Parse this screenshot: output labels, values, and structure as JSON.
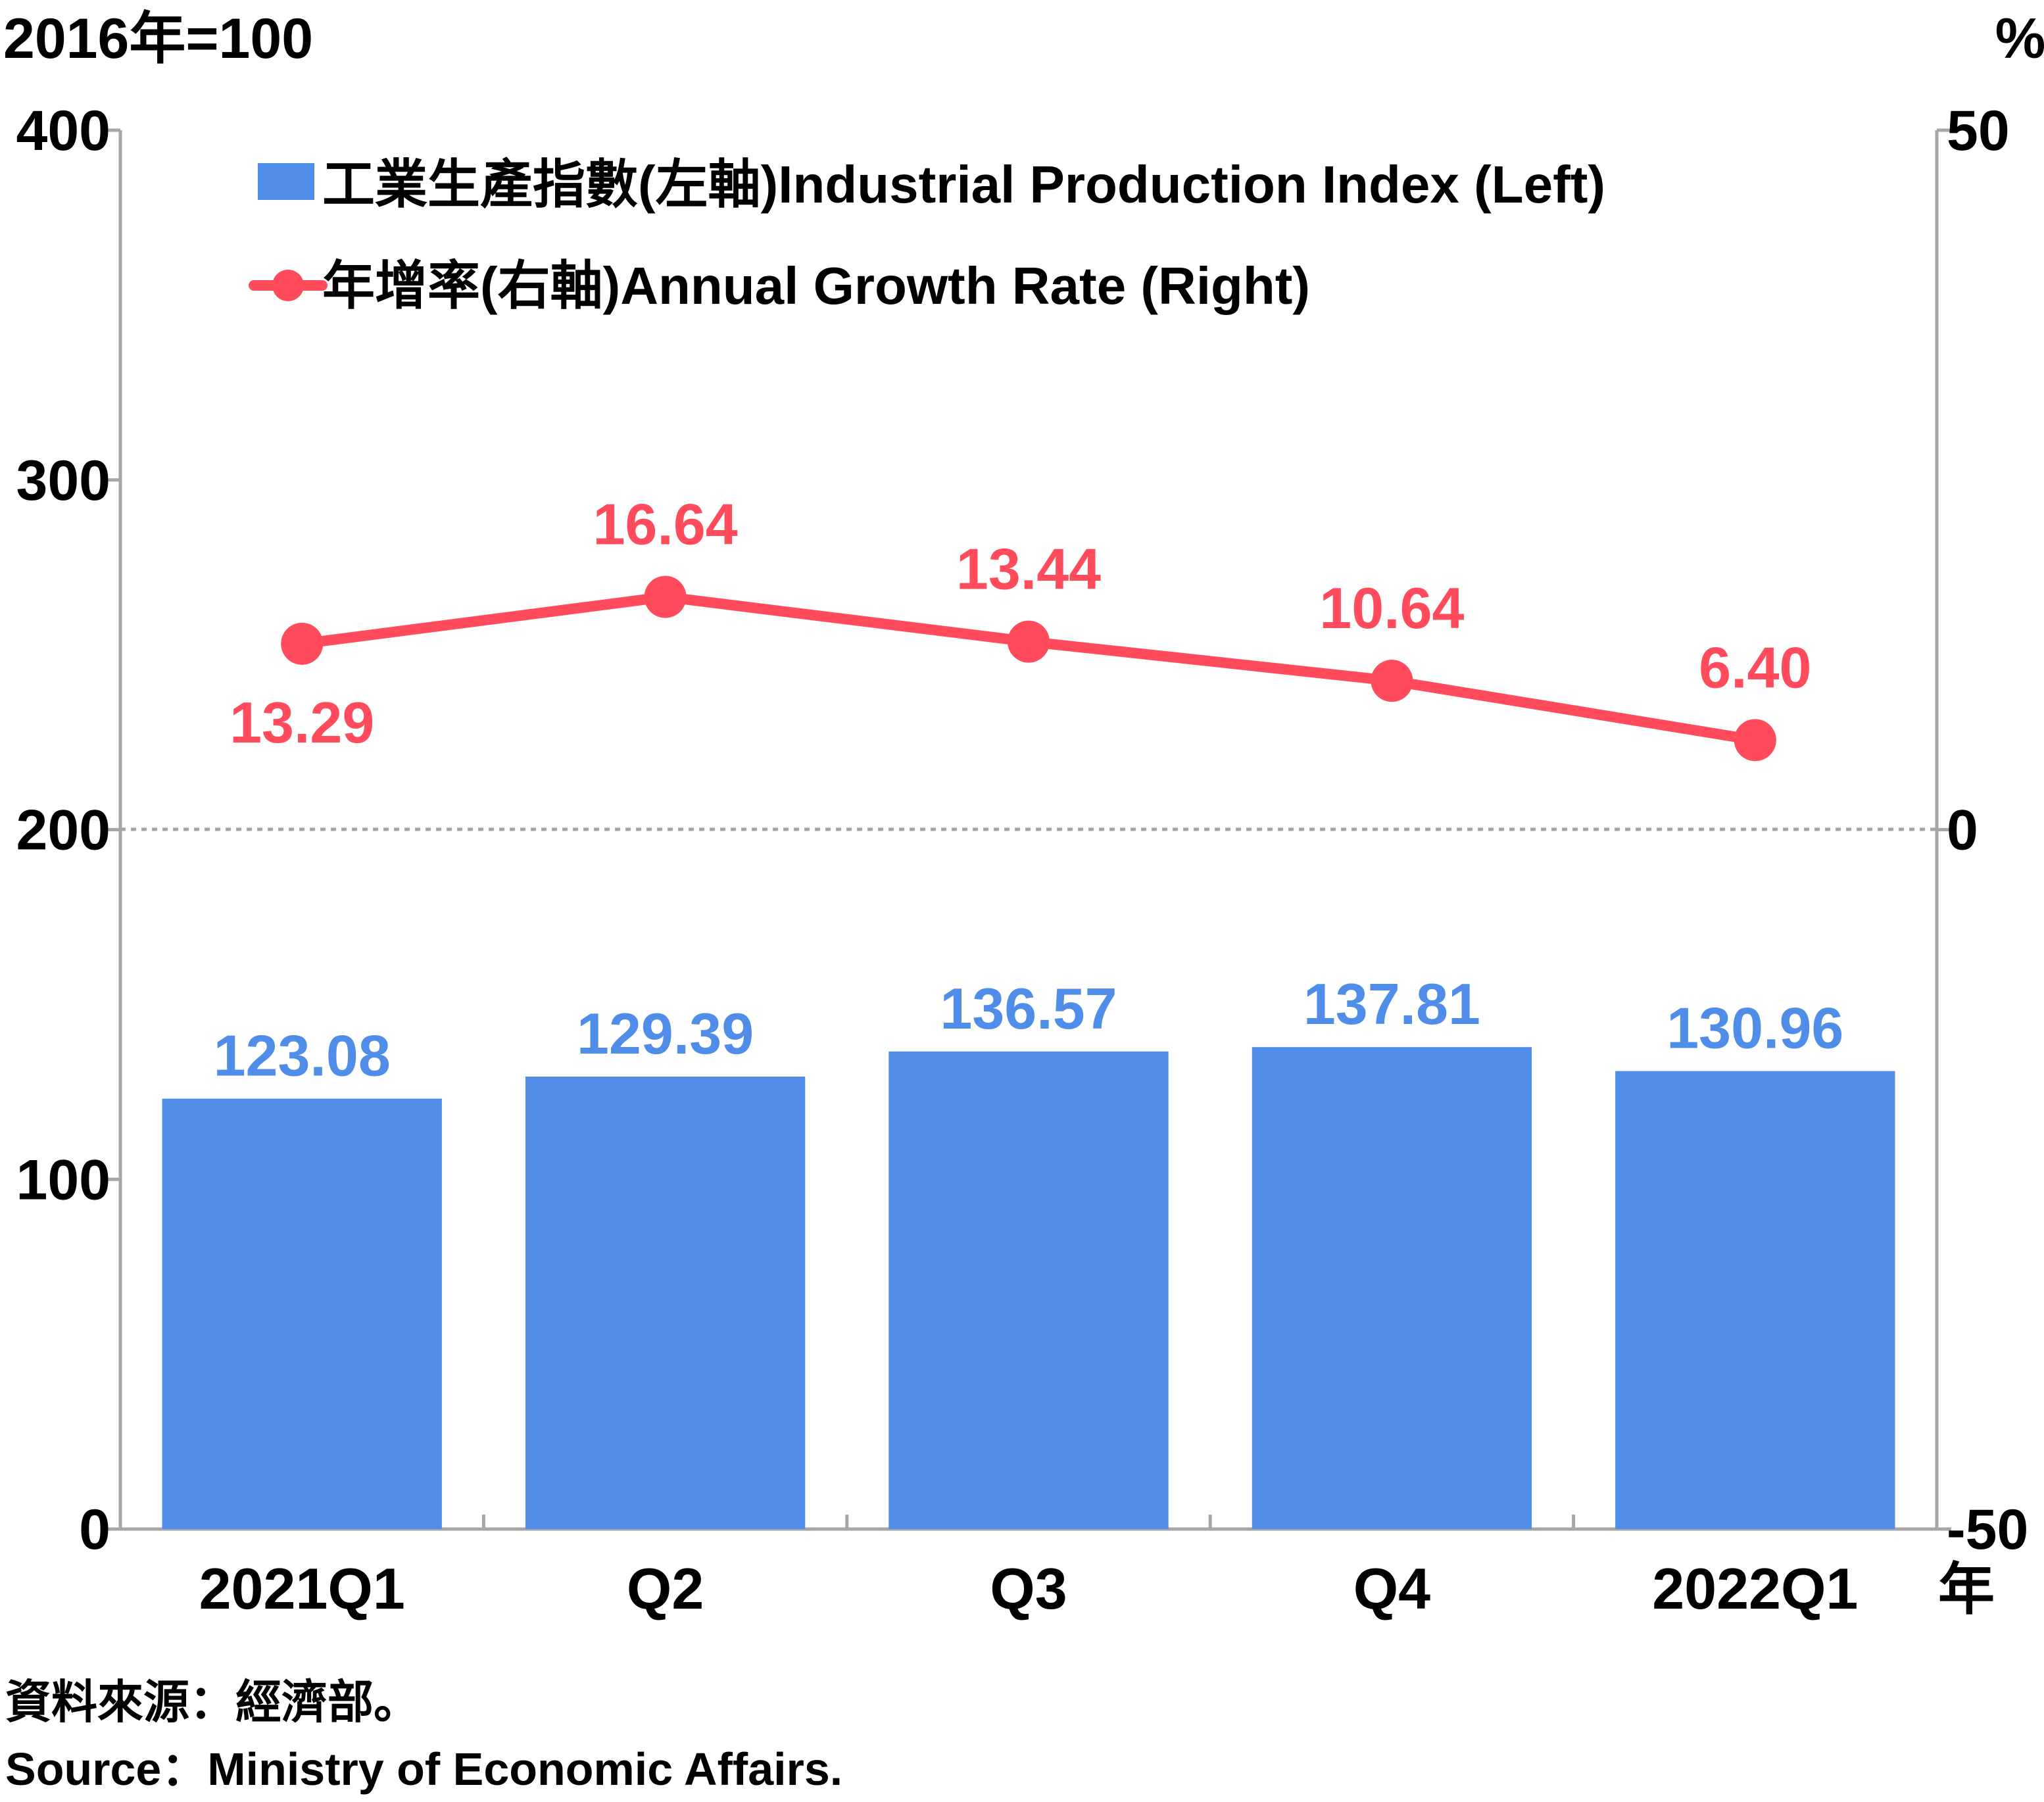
{
  "chart_data": {
    "type": "bar",
    "left_unit_label": "2016年=100",
    "right_unit_label": "%",
    "x_unit_label": "年",
    "categories": [
      "2021Q1",
      "Q2",
      "Q3",
      "Q4",
      "2022Q1"
    ],
    "left_axis": {
      "ylim": [
        0,
        400
      ],
      "ticks": [
        "0",
        "100",
        "200",
        "300",
        "400"
      ]
    },
    "right_axis": {
      "ylim": [
        -50,
        50
      ],
      "ticks": [
        "-50",
        "0",
        "50"
      ]
    },
    "zero_reference_line": {
      "axis": "right",
      "value": 0,
      "style": "dotted"
    },
    "series": [
      {
        "name": "工業生產指數(左軸)Industrial Production Index (Left)",
        "type": "bar",
        "axis": "left",
        "color": "#4F8DE8",
        "values": [
          123.08,
          129.39,
          136.57,
          137.81,
          130.96
        ],
        "labels": [
          "123.08",
          "129.39",
          "136.57",
          "137.81",
          "130.96"
        ]
      },
      {
        "name": "年增率(右軸)Annual Growth Rate (Right)",
        "type": "line",
        "axis": "right",
        "color": "#FF4B5C",
        "values": [
          13.29,
          16.64,
          13.44,
          10.64,
          6.4
        ],
        "labels": [
          "13.29",
          "16.64",
          "13.44",
          "10.64",
          "6.40"
        ]
      }
    ],
    "legend": {
      "placement": "top-left"
    },
    "grid": false
  },
  "source": {
    "zh": "資料來源：經濟部。",
    "en": "Source：Ministry of Economic Affairs."
  },
  "colors": {
    "axis": "#A6A6A6",
    "text": "#000000"
  }
}
